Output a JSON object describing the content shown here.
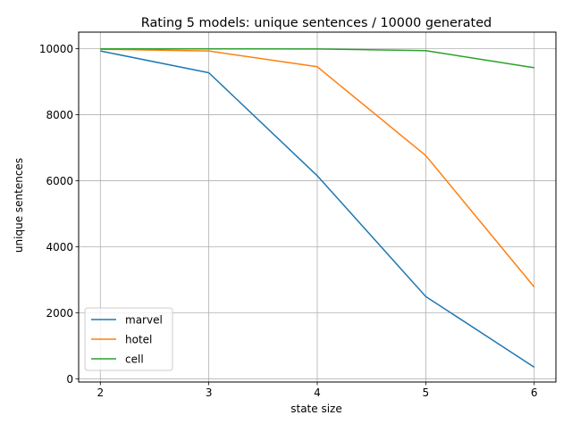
{
  "chart_data": {
    "type": "line",
    "title": "Rating 5 models: unique sentences / 10000 generated",
    "xlabel": "state size",
    "ylabel": "unique sentences",
    "x": [
      2,
      3,
      4,
      5,
      6
    ],
    "xlim": [
      1.8,
      6.2
    ],
    "ylim": [
      -100,
      10500
    ],
    "xticks": [
      2,
      3,
      4,
      5,
      6
    ],
    "yticks": [
      0,
      2000,
      4000,
      6000,
      8000,
      10000
    ],
    "grid": true,
    "legend_position": "lower-left",
    "series": [
      {
        "name": "marvel",
        "color": "#1f77b4",
        "values": [
          9930,
          9270,
          6150,
          2490,
          350
        ]
      },
      {
        "name": "hotel",
        "color": "#ff7f0e",
        "values": [
          9980,
          9930,
          9450,
          6760,
          2780
        ]
      },
      {
        "name": "cell",
        "color": "#2ca02c",
        "values": [
          9995,
          9995,
          9990,
          9940,
          9420
        ]
      }
    ]
  }
}
